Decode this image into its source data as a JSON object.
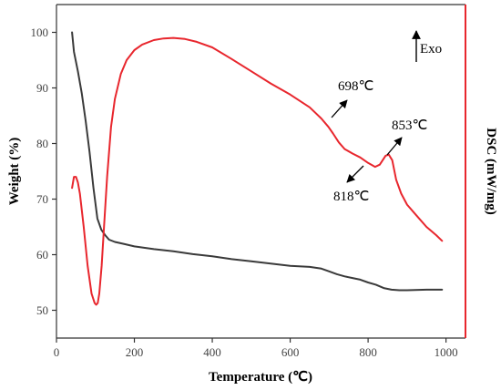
{
  "chart_data": {
    "type": "line",
    "xlabel": "Temperature (℃)",
    "ylabel": "Weight (%)",
    "y2label": "DSC (mW/mg)",
    "xlim": [
      0,
      1050
    ],
    "ylim": [
      45,
      105
    ],
    "xticks": [
      "0",
      "200",
      "400",
      "600",
      "800",
      "1000"
    ],
    "yticks": [
      "50",
      "60",
      "70",
      "80",
      "90",
      "100"
    ],
    "y2_axis_color": "#e8262d",
    "series": [
      {
        "color": "#3a3a3a",
        "axis": "left",
        "x": [
          40,
          45,
          55,
          65,
          75,
          85,
          95,
          105,
          115,
          125,
          135,
          150,
          175,
          200,
          250,
          300,
          350,
          400,
          450,
          500,
          550,
          600,
          650,
          680,
          700,
          720,
          740,
          760,
          780,
          800,
          820,
          840,
          860,
          880,
          900,
          950,
          990
        ],
        "y": [
          100,
          96.5,
          93,
          89,
          84,
          78.5,
          72,
          66.5,
          64.5,
          63.5,
          62.7,
          62.3,
          61.9,
          61.5,
          61,
          60.6,
          60.1,
          59.7,
          59.2,
          58.8,
          58.4,
          58,
          57.8,
          57.5,
          57,
          56.5,
          56.1,
          55.8,
          55.5,
          55,
          54.6,
          54,
          53.7,
          53.6,
          53.6,
          53.7,
          53.7
        ]
      },
      {
        "color": "#e8262d",
        "axis": "right",
        "x": [
          40,
          45,
          50,
          55,
          60,
          70,
          80,
          90,
          98,
          102,
          106,
          110,
          116,
          122,
          130,
          140,
          150,
          165,
          180,
          200,
          220,
          250,
          275,
          300,
          330,
          360,
          400,
          450,
          500,
          550,
          600,
          650,
          680,
          698,
          710,
          725,
          740,
          760,
          780,
          800,
          818,
          830,
          845,
          853,
          862,
          872,
          885,
          900,
          925,
          950,
          975,
          990
        ],
        "y": [
          72,
          74,
          74,
          73,
          71,
          65,
          58,
          53,
          51.3,
          51,
          51.3,
          53,
          58,
          65,
          74,
          83,
          88,
          92.5,
          95,
          96.8,
          97.8,
          98.6,
          98.9,
          99,
          98.8,
          98.3,
          97.3,
          95.2,
          93,
          90.8,
          88.8,
          86.5,
          84.5,
          83,
          81.8,
          80.2,
          79,
          78.2,
          77.5,
          76.5,
          75.8,
          76.2,
          77.8,
          78,
          77,
          73.5,
          71,
          69,
          67,
          65,
          63.5,
          62.5
        ]
      }
    ],
    "annotations": {
      "exo": "Exo",
      "a698": "698℃",
      "a853": "853℃",
      "a818": "818℃"
    }
  }
}
